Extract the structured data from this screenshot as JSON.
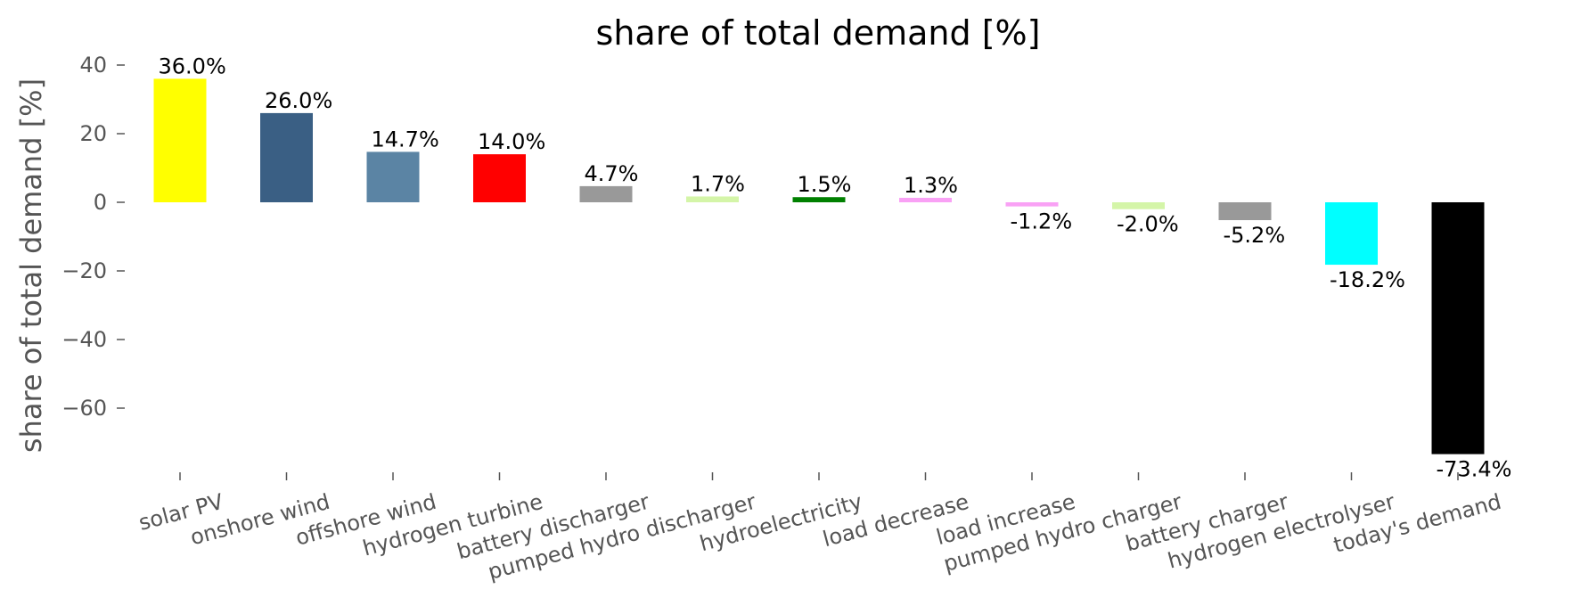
{
  "chart_data": {
    "type": "bar",
    "title": "share of total demand [%]",
    "ylabel": "share of total demand [%]",
    "xlabel": "",
    "categories": [
      "solar PV",
      "onshore wind",
      "offshore wind",
      "hydrogen turbine",
      "battery discharger",
      "pumped hydro discharger",
      "hydroelectricity",
      "load decrease",
      "load increase",
      "pumped hydro charger",
      "battery charger",
      "hydrogen electrolyser",
      "today's demand"
    ],
    "values": [
      36.0,
      26.0,
      14.7,
      14.0,
      4.7,
      1.7,
      1.5,
      1.3,
      -1.2,
      -2.0,
      -5.2,
      -18.2,
      -73.4
    ],
    "value_labels": [
      "36.0%",
      "26.0%",
      "14.7%",
      "14.0%",
      "4.7%",
      "1.7%",
      "1.5%",
      "1.3%",
      "-1.2%",
      "-2.0%",
      "-5.2%",
      "-18.2%",
      "-73.4%"
    ],
    "colors": [
      "#ffff00",
      "#3a5f84",
      "#5b84a4",
      "#ff0000",
      "#999999",
      "#d4f5a8",
      "#008000",
      "#f9a1f5",
      "#f9a1f5",
      "#d4f5a8",
      "#999999",
      "#00ffff",
      "#000000"
    ],
    "yticks": [
      40,
      20,
      0,
      -20,
      -40,
      -60
    ],
    "ytick_labels": [
      "40",
      "20",
      "0",
      "−20",
      "−40",
      "−60"
    ],
    "ylim": [
      -80,
      45
    ],
    "grid": false,
    "legend": "none"
  }
}
